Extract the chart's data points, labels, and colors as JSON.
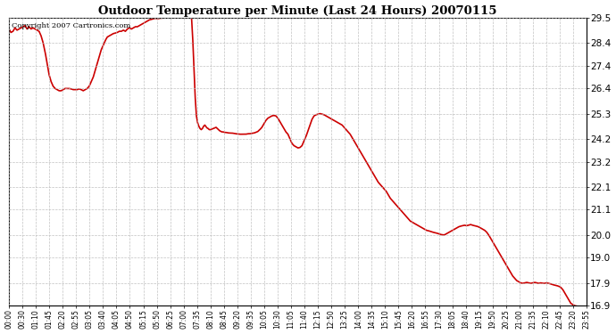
{
  "title": "Outdoor Temperature per Minute (Last 24 Hours) 20070115",
  "copyright_text": "Copyright 2007 Cartronics.com",
  "line_color": "#cc0000",
  "background_color": "#ffffff",
  "grid_color": "#bbbbbb",
  "ylim": [
    16.9,
    29.5
  ],
  "yticks": [
    16.9,
    17.9,
    19.0,
    20.0,
    21.1,
    22.1,
    23.2,
    24.2,
    25.3,
    26.4,
    27.4,
    28.4,
    29.5
  ],
  "x_tick_labels": [
    "00:00",
    "00:30",
    "01:10",
    "01:45",
    "02:20",
    "02:55",
    "03:05",
    "03:40",
    "04:05",
    "04:50",
    "05:15",
    "05:50",
    "06:25",
    "07:00",
    "07:35",
    "08:10",
    "08:45",
    "09:20",
    "09:35",
    "10:05",
    "10:30",
    "11:05",
    "11:40",
    "12:15",
    "12:50",
    "13:25",
    "14:00",
    "14:35",
    "15:10",
    "15:45",
    "16:20",
    "16:55",
    "17:30",
    "18:05",
    "18:40",
    "19:15",
    "19:50",
    "20:25",
    "21:00",
    "21:35",
    "22:10",
    "22:45",
    "23:20",
    "23:55"
  ]
}
